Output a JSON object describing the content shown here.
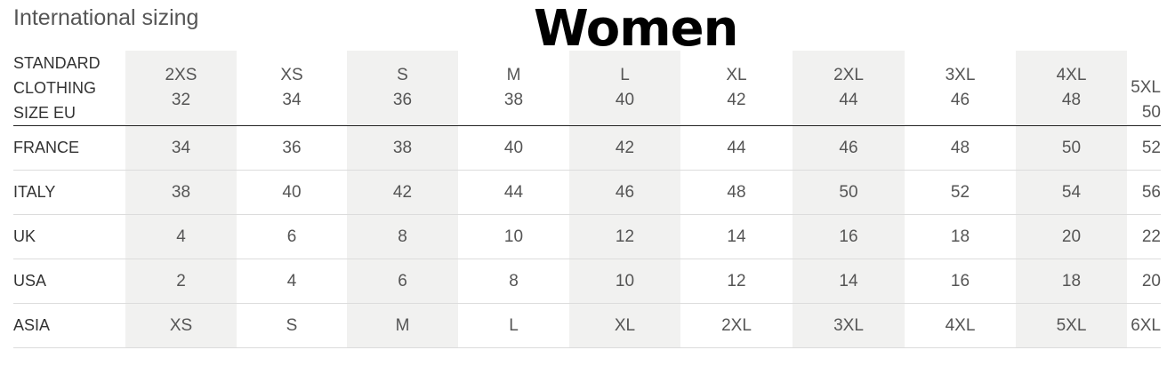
{
  "subtitle": "International sizing",
  "title": "Women",
  "header": {
    "label": [
      "STANDARD",
      "CLOTHING",
      "SIZE EU"
    ],
    "columns": [
      {
        "size": "2XS",
        "eu": "32"
      },
      {
        "size": "XS",
        "eu": "34"
      },
      {
        "size": "S",
        "eu": "36"
      },
      {
        "size": "M",
        "eu": "38"
      },
      {
        "size": "L",
        "eu": "40"
      },
      {
        "size": "XL",
        "eu": "42"
      },
      {
        "size": "2XL",
        "eu": "44"
      },
      {
        "size": "3XL",
        "eu": "46"
      },
      {
        "size": "4XL",
        "eu": "48"
      },
      {
        "size": "5XL",
        "eu": "50"
      }
    ]
  },
  "rows": [
    {
      "label": "FRANCE",
      "values": [
        "34",
        "36",
        "38",
        "40",
        "42",
        "44",
        "46",
        "48",
        "50",
        "52"
      ]
    },
    {
      "label": "ITALY",
      "values": [
        "38",
        "40",
        "42",
        "44",
        "46",
        "48",
        "50",
        "52",
        "54",
        "56"
      ]
    },
    {
      "label": "UK",
      "values": [
        "4",
        "6",
        "8",
        "10",
        "12",
        "14",
        "16",
        "18",
        "20",
        "22"
      ]
    },
    {
      "label": "USA",
      "values": [
        "2",
        "4",
        "6",
        "8",
        "10",
        "12",
        "14",
        "16",
        "18",
        "20"
      ]
    },
    {
      "label": "ASIA",
      "values": [
        "XS",
        "S",
        "M",
        "L",
        "XL",
        "2XL",
        "3XL",
        "4XL",
        "5XL",
        "6XL"
      ]
    }
  ],
  "colors": {
    "shade": "#f1f1f0",
    "text": "#555555"
  }
}
